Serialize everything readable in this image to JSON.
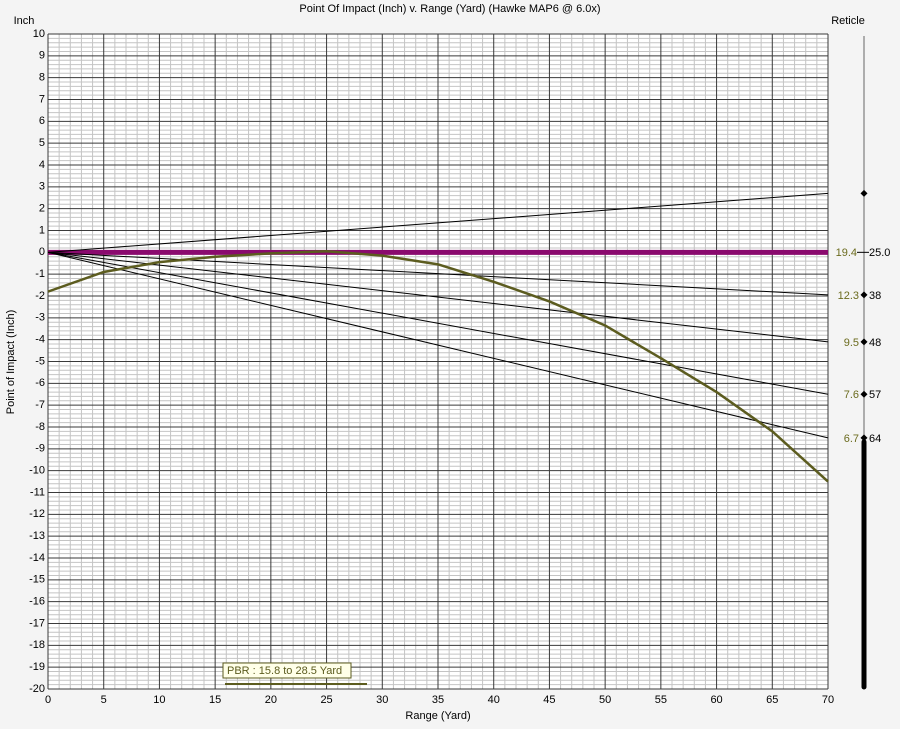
{
  "chart_data": {
    "type": "line",
    "title": "Point Of Impact (Inch) v. Range (Yard) (Hawke MAP6 @ 6.0x)",
    "y_unit_label": "Inch",
    "reticle_title": "Reticle",
    "xlabel": "Range (Yard)",
    "ylabel": "Point of Impact (Inch)",
    "xlim": [
      0,
      70
    ],
    "ylim": [
      -20,
      10
    ],
    "xticks": [
      0,
      5,
      10,
      15,
      20,
      25,
      30,
      35,
      40,
      45,
      50,
      55,
      60,
      65,
      70
    ],
    "yticks": [
      -20,
      -19,
      -18,
      -17,
      -16,
      -15,
      -14,
      -13,
      -12,
      -11,
      -10,
      -9,
      -8,
      -7,
      -6,
      -5,
      -4,
      -3,
      -2,
      -1,
      0,
      1,
      2,
      3,
      4,
      5,
      6,
      7,
      8,
      9,
      10
    ],
    "grid": true,
    "series": [
      {
        "color": "#5c5c1f",
        "x": [
          0,
          5,
          10,
          15,
          20,
          25,
          30,
          35,
          40,
          45,
          50,
          55,
          60,
          65,
          70
        ],
        "values": [
          -1.8,
          -0.9,
          -0.45,
          -0.2,
          -0.05,
          0.05,
          -0.15,
          -0.55,
          -1.35,
          -2.25,
          -3.35,
          -4.85,
          -6.4,
          -8.2,
          -10.5
        ]
      }
    ],
    "zero_line": {
      "color": "#8a0a6e",
      "x": [
        0,
        70
      ],
      "values": [
        0,
        0
      ],
      "labels": [
        "19.4",
        "25.0"
      ]
    },
    "reticle_lines": [
      {
        "color": "#000000",
        "x": [
          0,
          70
        ],
        "values": [
          0,
          2.7
        ]
      },
      {
        "color": "#000000",
        "x": [
          0,
          70
        ],
        "values": [
          0,
          -1.95
        ],
        "labels": [
          "12.3",
          "38"
        ]
      },
      {
        "color": "#000000",
        "x": [
          0,
          70
        ],
        "values": [
          0,
          -4.1
        ],
        "labels": [
          "9.5",
          "48"
        ]
      },
      {
        "color": "#000000",
        "x": [
          0,
          70
        ],
        "values": [
          0,
          -6.5
        ],
        "labels": [
          "7.6",
          "57"
        ]
      },
      {
        "color": "#000000",
        "x": [
          0,
          70
        ],
        "values": [
          0,
          -8.5
        ],
        "labels": [
          "6.7",
          "64"
        ]
      }
    ],
    "pbr_label": "PBR : 15.8 to 28.5  Yard"
  }
}
